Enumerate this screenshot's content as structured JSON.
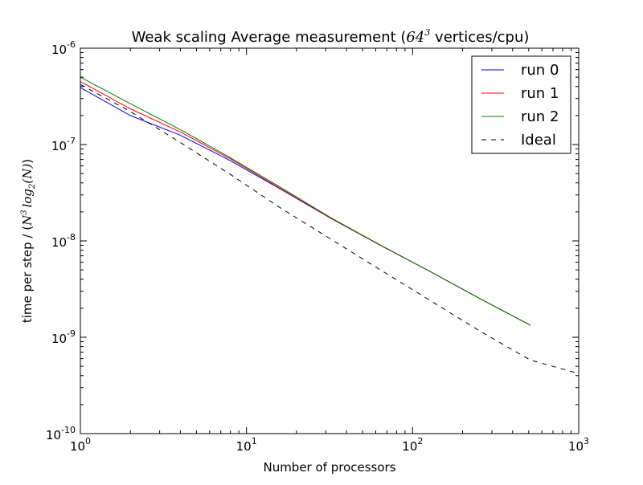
{
  "chart_data": {
    "type": "line",
    "title": {
      "prefix": "Weak scaling Average measurement (",
      "math_base": "64",
      "math_exp": "3",
      "suffix": "  vertices/cpu)"
    },
    "xlabel": "Number of processors",
    "ylabel": {
      "prefix": "time per step / (",
      "N": "N",
      "N_exp": "3",
      "log": "log",
      "log_sub": "2",
      "arg": "(N)",
      "suffix": ")"
    },
    "xscale": "log",
    "yscale": "log",
    "xlim": [
      1,
      1000
    ],
    "ylim": [
      1e-10,
      1e-06
    ],
    "xticks": [
      {
        "value": 1,
        "base": "10",
        "exp": "0"
      },
      {
        "value": 10,
        "base": "10",
        "exp": "1"
      },
      {
        "value": 100,
        "base": "10",
        "exp": "2"
      },
      {
        "value": 1000,
        "base": "10",
        "exp": "3"
      }
    ],
    "yticks": [
      {
        "value": 1e-10,
        "base": "10",
        "exp": "-10"
      },
      {
        "value": 1e-09,
        "base": "10",
        "exp": "-9"
      },
      {
        "value": 1e-08,
        "base": "10",
        "exp": "-8"
      },
      {
        "value": 1e-07,
        "base": "10",
        "exp": "-7"
      },
      {
        "value": 1e-06,
        "base": "10",
        "exp": "-6"
      }
    ],
    "grid": false,
    "legend_position": "top-right",
    "series": [
      {
        "name": "run 0",
        "color": "#0000ff",
        "style": "solid",
        "x": [
          1,
          2,
          4,
          8,
          16,
          32,
          64,
          128,
          256,
          512
        ],
        "y": [
          3.9e-07,
          2e-07,
          1.25e-07,
          6.8e-08,
          3.45e-08,
          1.72e-08,
          9e-09,
          4.8e-09,
          2.5e-09,
          1.33e-09
        ]
      },
      {
        "name": "run 1",
        "color": "#ff0000",
        "style": "solid",
        "x": [
          1,
          2,
          4,
          8,
          16,
          32,
          64,
          128,
          256,
          512
        ],
        "y": [
          4.5e-07,
          2.35e-07,
          1.35e-07,
          7.1e-08,
          3.5e-08,
          1.73e-08,
          9e-09,
          4.8e-09,
          2.5e-09,
          1.33e-09
        ]
      },
      {
        "name": "run 2",
        "color": "#008000",
        "style": "solid",
        "x": [
          1,
          2,
          4,
          8,
          16,
          32,
          64,
          128,
          256,
          512
        ],
        "y": [
          5e-07,
          2.65e-07,
          1.43e-07,
          7.3e-08,
          3.6e-08,
          1.75e-08,
          9.05e-09,
          4.8e-09,
          2.5e-09,
          1.33e-09
        ]
      },
      {
        "name": "Ideal",
        "color": "#000000",
        "style": "dashed",
        "x": [
          1,
          2,
          4,
          8,
          16,
          32,
          64,
          128,
          256,
          512,
          1000
        ],
        "y": [
          4.2e-07,
          2.2e-07,
          1.05e-07,
          4.9e-08,
          2.2e-08,
          1.05e-08,
          5e-09,
          2.4e-09,
          1.15e-09,
          5.8e-10,
          4.2e-10
        ]
      }
    ]
  }
}
